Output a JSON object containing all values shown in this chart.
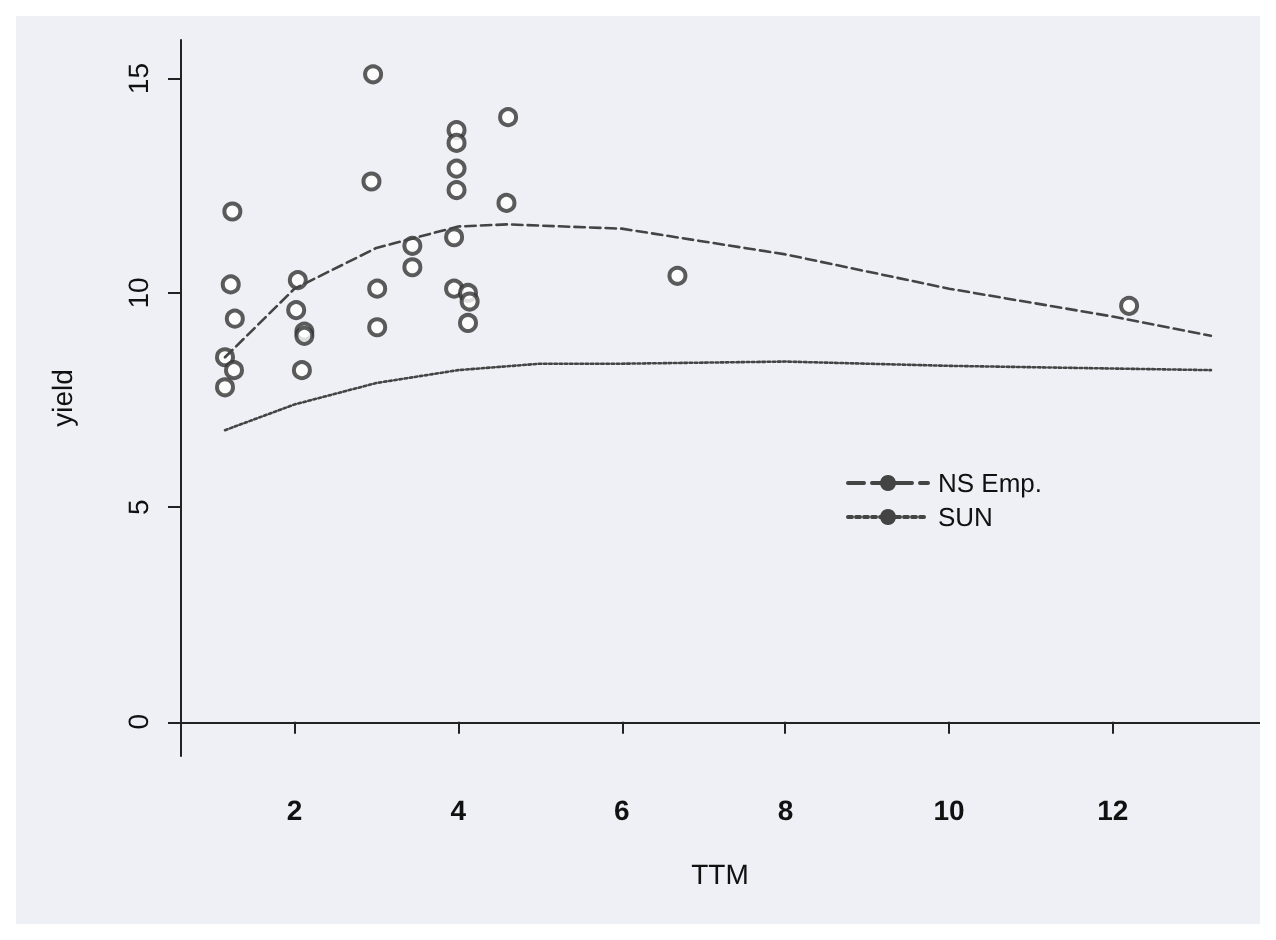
{
  "chart_data": {
    "type": "scatter",
    "xlabel": "TTM",
    "ylabel": "yield",
    "xlim": [
      0.6,
      13.8
    ],
    "ylim": [
      -0.8,
      15.9
    ],
    "xticks": [
      2,
      4,
      6,
      8,
      10,
      12
    ],
    "yticks": [
      0,
      5,
      10,
      15
    ],
    "grid": false,
    "legend": "center right",
    "series": [
      {
        "marker": "circle",
        "color": "#333333",
        "x": [
          2.96,
          1.24,
          1.22,
          1.27,
          1.15,
          1.26,
          1.15,
          2.04,
          2.02,
          2.12,
          2.12,
          2.09,
          2.94,
          3.01,
          3.01,
          3.44,
          3.44,
          3.98,
          3.98,
          3.98,
          3.98,
          3.95,
          3.95,
          4.12,
          4.14,
          4.12,
          4.61,
          4.59,
          6.68,
          12.2
        ],
        "values": [
          15.1,
          11.9,
          10.2,
          9.4,
          8.5,
          8.2,
          7.8,
          10.3,
          9.6,
          9.1,
          9.0,
          8.2,
          12.6,
          10.1,
          9.2,
          11.1,
          10.6,
          13.8,
          13.5,
          12.9,
          12.4,
          11.3,
          10.1,
          10.0,
          9.8,
          9.3,
          14.1,
          12.1,
          10.4,
          9.7
        ]
      },
      {
        "type": "line",
        "name": "NS Emp.",
        "color": "#444444",
        "line_style": "dashed",
        "marker": "none",
        "x": [
          1.15,
          2,
          3,
          4,
          4.6,
          6,
          8,
          10,
          12,
          13.2
        ],
        "values": [
          8.5,
          10.1,
          11.05,
          11.55,
          11.6,
          11.5,
          10.9,
          10.1,
          9.45,
          9.0
        ]
      },
      {
        "type": "line",
        "name": "SUN",
        "color": "#444444",
        "line_style": "dotted",
        "marker": "none",
        "x": [
          1.15,
          2,
          3,
          4,
          5,
          6,
          8,
          10,
          13.2
        ],
        "values": [
          6.8,
          7.4,
          7.9,
          8.2,
          8.35,
          8.35,
          8.4,
          8.3,
          8.2
        ]
      }
    ]
  }
}
